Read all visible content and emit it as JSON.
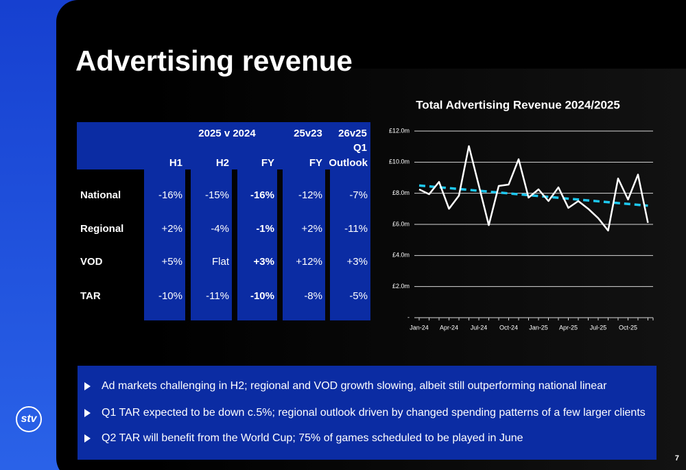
{
  "title": "Advertising revenue",
  "table": {
    "group_headers": [
      "2025 v 2024",
      "25v23",
      "26v25"
    ],
    "subheader": "Q1",
    "columns": [
      "H1",
      "H2",
      "FY",
      "FY",
      "Outlook"
    ],
    "rows": [
      [
        "National",
        "-16%",
        "-15%",
        "-16%",
        "-12%",
        "-7%"
      ],
      [
        "Regional",
        "+2%",
        "-4%",
        "-1%",
        "+2%",
        "-11%"
      ],
      [
        "VOD",
        "+5%",
        "Flat",
        "+3%",
        "+12%",
        "+3%"
      ],
      [
        "TAR",
        "-10%",
        "-11%",
        "-10%",
        "-8%",
        "-5%"
      ]
    ]
  },
  "chart_data": {
    "type": "line",
    "title": "Total Advertising Revenue 2024/2025",
    "categories": [
      "Jan-24",
      null,
      null,
      "Apr-24",
      null,
      null,
      "Jul-24",
      null,
      null,
      "Oct-24",
      null,
      null,
      "Jan-25",
      null,
      null,
      "Apr-25",
      null,
      null,
      "Jul-25",
      null,
      null,
      "Oct-25",
      null,
      null
    ],
    "series": [
      {
        "color": "#ffffff",
        "values": [
          8.25,
          7.94,
          8.73,
          7.0,
          7.85,
          11.03,
          8.5,
          5.95,
          8.47,
          8.56,
          10.19,
          7.72,
          8.25,
          7.5,
          8.38,
          7.06,
          7.5,
          7.0,
          6.4,
          5.6,
          8.95,
          7.6,
          9.2,
          6.1
        ]
      }
    ],
    "trend": {
      "color": "#1ec8f0",
      "values": [
        8.5,
        7.2
      ]
    },
    "ylim": [
      0,
      12
    ],
    "yticks": [
      {
        "value": 0,
        "label": "-"
      },
      {
        "value": 2,
        "label": "£2.0m"
      },
      {
        "value": 4,
        "label": "£4.0m"
      },
      {
        "value": 6,
        "label": "£6.0m"
      },
      {
        "value": 8,
        "label": "£8.0m"
      },
      {
        "value": 10,
        "label": "£10.0m"
      },
      {
        "value": 12,
        "label": "£12.0m"
      }
    ],
    "grid": true
  },
  "bullets": [
    "Ad markets challenging in H2; regional and VOD growth slowing, albeit still outperforming national linear",
    "Q1 TAR expected to be down c.5%; regional outlook driven by changed spending patterns of a few larger clients",
    "Q2 TAR will benefit from the World Cup; 75% of games scheduled to be played in June"
  ],
  "logo": "stv",
  "page_number": "7"
}
